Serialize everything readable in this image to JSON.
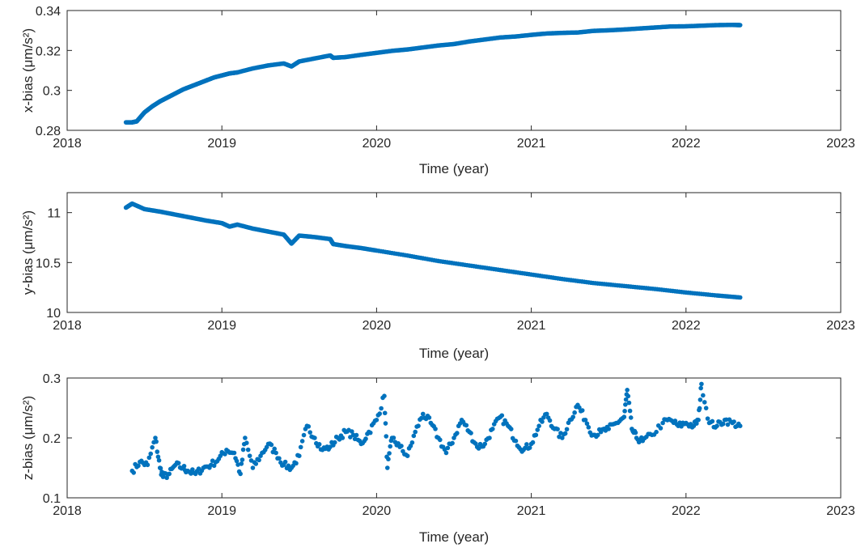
{
  "chart_data": [
    {
      "type": "scatter",
      "xlabel": "Time (year)",
      "ylabel": "x-bias",
      "ylabel_unit": "(μm/s²)",
      "xlim": [
        2018,
        2023
      ],
      "ylim": [
        0.28,
        0.34
      ],
      "xticks": [
        2018,
        2019,
        2020,
        2021,
        2022,
        2023
      ],
      "yticks": [
        0.28,
        0.3,
        0.32,
        0.34
      ],
      "xtick_labels": [
        "2018",
        "2019",
        "2020",
        "2021",
        "2022",
        "2023"
      ],
      "ytick_labels": [
        "0.28",
        "0.3",
        "0.32",
        "0.34"
      ],
      "grid": false,
      "marker_color": "#0072BD",
      "series": [
        {
          "x": [
            2018.38,
            2018.42,
            2018.45,
            2018.5,
            2018.55,
            2018.6,
            2018.65,
            2018.7,
            2018.75,
            2018.8,
            2018.85,
            2018.9,
            2018.95,
            2019.0,
            2019.05,
            2019.1,
            2019.2,
            2019.3,
            2019.4,
            2019.45,
            2019.5,
            2019.6,
            2019.7,
            2019.72,
            2019.8,
            2019.9,
            2020.0,
            2020.1,
            2020.2,
            2020.3,
            2020.4,
            2020.5,
            2020.6,
            2020.7,
            2020.8,
            2020.9,
            2021.0,
            2021.1,
            2021.2,
            2021.3,
            2021.4,
            2021.5,
            2021.6,
            2021.7,
            2021.8,
            2021.9,
            2022.0,
            2022.1,
            2022.2,
            2022.3,
            2022.35
          ],
          "y": [
            0.284,
            0.284,
            0.2845,
            0.289,
            0.292,
            0.2945,
            0.2965,
            0.2985,
            0.3005,
            0.302,
            0.3035,
            0.305,
            0.3065,
            0.3075,
            0.3085,
            0.309,
            0.311,
            0.3125,
            0.3135,
            0.312,
            0.3145,
            0.316,
            0.3175,
            0.3163,
            0.3167,
            0.3178,
            0.3188,
            0.3198,
            0.3205,
            0.3215,
            0.3225,
            0.3232,
            0.3245,
            0.3255,
            0.3265,
            0.327,
            0.3278,
            0.3285,
            0.3288,
            0.329,
            0.3298,
            0.3301,
            0.3305,
            0.331,
            0.3315,
            0.332,
            0.3321,
            0.3324,
            0.3327,
            0.3328,
            0.3327
          ]
        }
      ]
    },
    {
      "type": "scatter",
      "xlabel": "Time (year)",
      "ylabel": "y-bias",
      "ylabel_unit": "(μm/s²)",
      "xlim": [
        2018,
        2023
      ],
      "ylim": [
        10,
        11.2
      ],
      "xticks": [
        2018,
        2019,
        2020,
        2021,
        2022,
        2023
      ],
      "yticks": [
        10,
        10.5,
        11
      ],
      "xtick_labels": [
        "2018",
        "2019",
        "2020",
        "2021",
        "2022",
        "2023"
      ],
      "ytick_labels": [
        "10",
        "10.5",
        "11"
      ],
      "grid": false,
      "marker_color": "#0072BD",
      "series": [
        {
          "x": [
            2018.38,
            2018.42,
            2018.5,
            2018.6,
            2018.7,
            2018.8,
            2018.9,
            2019.0,
            2019.05,
            2019.1,
            2019.2,
            2019.3,
            2019.4,
            2019.45,
            2019.5,
            2019.6,
            2019.7,
            2019.72,
            2019.8,
            2019.9,
            2020.0,
            2020.2,
            2020.4,
            2020.6,
            2020.8,
            2021.0,
            2021.2,
            2021.4,
            2021.6,
            2021.8,
            2022.0,
            2022.2,
            2022.35
          ],
          "y": [
            11.05,
            11.09,
            11.035,
            11.01,
            10.98,
            10.95,
            10.92,
            10.895,
            10.86,
            10.88,
            10.84,
            10.81,
            10.78,
            10.69,
            10.77,
            10.755,
            10.735,
            10.685,
            10.665,
            10.645,
            10.62,
            10.57,
            10.515,
            10.47,
            10.425,
            10.38,
            10.335,
            10.295,
            10.265,
            10.235,
            10.2,
            10.17,
            10.15
          ]
        }
      ]
    },
    {
      "type": "scatter",
      "xlabel": "Time (year)",
      "ylabel": "z-bias",
      "ylabel_unit": "(μm/s²)",
      "xlim": [
        2018,
        2023
      ],
      "ylim": [
        0.1,
        0.3
      ],
      "xticks": [
        2018,
        2019,
        2020,
        2021,
        2022,
        2023
      ],
      "yticks": [
        0.1,
        0.2,
        0.3
      ],
      "xtick_labels": [
        "2018",
        "2019",
        "2020",
        "2021",
        "2022",
        "2023"
      ],
      "ytick_labels": [
        "0.1",
        "0.2",
        "0.3"
      ],
      "grid": false,
      "marker_color": "#0072BD",
      "series": [
        {
          "x": [
            2018.42,
            2018.47,
            2018.52,
            2018.57,
            2018.6,
            2018.62,
            2018.66,
            2018.7,
            2018.75,
            2018.78,
            2018.83,
            2018.88,
            2018.93,
            2018.98,
            2019.03,
            2019.08,
            2019.12,
            2019.15,
            2019.2,
            2019.25,
            2019.3,
            2019.35,
            2019.4,
            2019.45,
            2019.5,
            2019.55,
            2019.6,
            2019.65,
            2019.7,
            2019.75,
            2019.8,
            2019.85,
            2019.9,
            2019.95,
            2020.0,
            2020.05,
            2020.07,
            2020.1,
            2020.15,
            2020.2,
            2020.25,
            2020.3,
            2020.35,
            2020.4,
            2020.45,
            2020.5,
            2020.55,
            2020.6,
            2020.65,
            2020.7,
            2020.75,
            2020.8,
            2020.85,
            2020.9,
            2020.95,
            2021.0,
            2021.05,
            2021.1,
            2021.15,
            2021.2,
            2021.25,
            2021.3,
            2021.35,
            2021.4,
            2021.45,
            2021.5,
            2021.55,
            2021.6,
            2021.62,
            2021.65,
            2021.68,
            2021.72,
            2021.78,
            2021.85,
            2021.9,
            2021.95,
            2022.0,
            2022.05,
            2022.08,
            2022.1,
            2022.15,
            2022.2,
            2022.25,
            2022.3,
            2022.35
          ],
          "y": [
            0.145,
            0.16,
            0.155,
            0.2,
            0.15,
            0.135,
            0.14,
            0.155,
            0.15,
            0.145,
            0.14,
            0.15,
            0.155,
            0.165,
            0.18,
            0.175,
            0.14,
            0.2,
            0.15,
            0.17,
            0.19,
            0.175,
            0.155,
            0.15,
            0.17,
            0.22,
            0.2,
            0.18,
            0.185,
            0.2,
            0.21,
            0.205,
            0.19,
            0.21,
            0.23,
            0.27,
            0.15,
            0.2,
            0.185,
            0.17,
            0.21,
            0.24,
            0.225,
            0.2,
            0.175,
            0.2,
            0.23,
            0.21,
            0.185,
            0.19,
            0.215,
            0.235,
            0.22,
            0.195,
            0.18,
            0.19,
            0.22,
            0.24,
            0.215,
            0.2,
            0.23,
            0.255,
            0.23,
            0.205,
            0.21,
            0.215,
            0.225,
            0.235,
            0.28,
            0.215,
            0.2,
            0.195,
            0.205,
            0.225,
            0.23,
            0.22,
            0.225,
            0.22,
            0.23,
            0.29,
            0.225,
            0.22,
            0.23,
            0.225,
            0.22
          ]
        }
      ]
    }
  ]
}
